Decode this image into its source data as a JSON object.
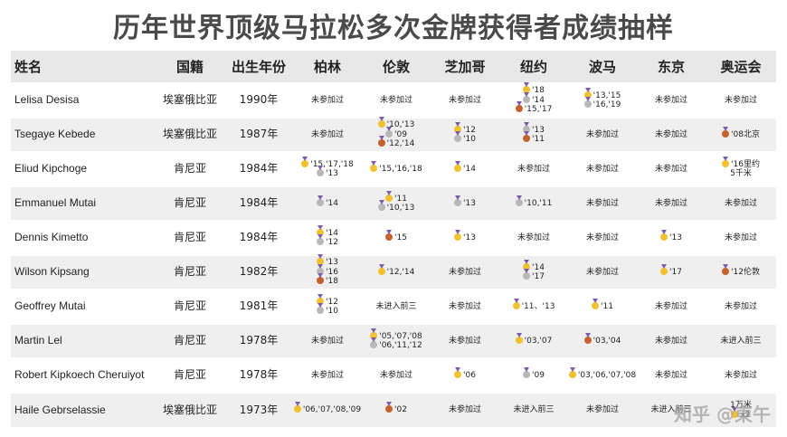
{
  "title": "历年世界顶级马拉松多次金牌获得者成绩抽样",
  "headers": [
    "姓名",
    "国籍",
    "出生年份",
    "柏林",
    "伦敦",
    "芝加哥",
    "纽约",
    "波马",
    "东京",
    "奥运会"
  ],
  "watermark": "知乎 @東午",
  "medal_colors": {
    "gold": "#f2c12e",
    "silver": "#b8b8b8",
    "bronze": "#c4622d"
  },
  "rows": [
    {
      "name": "Lelisa Desisa",
      "nationality": "埃塞俄比亚",
      "birth": "1990年",
      "races": [
        [
          {
            "t": "未参加过"
          }
        ],
        [
          {
            "t": "未参加过"
          }
        ],
        [
          {
            "t": "未参加过"
          }
        ],
        [
          {
            "m": "gold",
            "t": "'18"
          },
          {
            "m": "silver",
            "t": "'14"
          },
          {
            "m": "bronze",
            "t": "'15,'17"
          }
        ],
        [
          {
            "m": "gold",
            "t": "'13,'15"
          },
          {
            "m": "silver",
            "t": "'16,'19"
          }
        ],
        [
          {
            "t": "未参加过"
          }
        ],
        [
          {
            "t": "未参加过"
          }
        ]
      ]
    },
    {
      "name": "Tsegaye Kebede",
      "nationality": "埃塞俄比亚",
      "birth": "1987年",
      "races": [
        [
          {
            "t": "未参加过"
          }
        ],
        [
          {
            "m": "gold",
            "t": "'10,'13"
          },
          {
            "m": "silver",
            "t": "'09"
          },
          {
            "m": "bronze",
            "t": "'12,'14"
          }
        ],
        [
          {
            "m": "gold",
            "t": "'12"
          },
          {
            "m": "silver",
            "t": "'10"
          }
        ],
        [
          {
            "m": "silver",
            "t": "'13"
          },
          {
            "m": "bronze",
            "t": "'11"
          }
        ],
        [
          {
            "t": "未参加过"
          }
        ],
        [
          {
            "t": "未参加过"
          }
        ],
        [
          {
            "m": "bronze",
            "t": "'08北京"
          }
        ]
      ]
    },
    {
      "name": "Eliud Kipchoge",
      "nationality": "肯尼亚",
      "birth": "1984年",
      "races": [
        [
          {
            "m": "gold",
            "t": "'15,'17,'18"
          },
          {
            "m": "silver",
            "t": "'13"
          }
        ],
        [
          {
            "m": "gold",
            "t": "'15,'16,'18"
          }
        ],
        [
          {
            "m": "gold",
            "t": "'14"
          }
        ],
        [
          {
            "t": "未参加过"
          }
        ],
        [
          {
            "t": "未参加过"
          }
        ],
        [
          {
            "t": "未参加过"
          }
        ],
        [
          {
            "m": "gold",
            "t": "'16里约"
          },
          {
            "t": "5千米"
          }
        ]
      ]
    },
    {
      "name": "Emmanuel Mutai",
      "nationality": "肯尼亚",
      "birth": "1984年",
      "races": [
        [
          {
            "m": "silver",
            "t": "'14"
          }
        ],
        [
          {
            "m": "gold",
            "t": "'11"
          },
          {
            "m": "silver",
            "t": "'10,'13"
          }
        ],
        [
          {
            "m": "silver",
            "t": "'13"
          }
        ],
        [
          {
            "m": "silver",
            "t": "'10,'11"
          }
        ],
        [
          {
            "t": "未参加过"
          }
        ],
        [
          {
            "t": "未参加过"
          }
        ],
        [
          {
            "t": "未参加过"
          }
        ]
      ]
    },
    {
      "name": "Dennis Kimetto",
      "nationality": "肯尼亚",
      "birth": "1984年",
      "races": [
        [
          {
            "m": "gold",
            "t": "'14"
          },
          {
            "m": "silver",
            "t": "'12"
          }
        ],
        [
          {
            "m": "bronze",
            "t": "'15"
          }
        ],
        [
          {
            "m": "gold",
            "t": "'13"
          }
        ],
        [
          {
            "t": "未参加过"
          }
        ],
        [
          {
            "t": "未参加过"
          }
        ],
        [
          {
            "m": "gold",
            "t": "'13"
          }
        ],
        [
          {
            "t": "未参加过"
          }
        ]
      ]
    },
    {
      "name": "Wilson Kipsang",
      "nationality": "肯尼亚",
      "birth": "1982年",
      "races": [
        [
          {
            "m": "gold",
            "t": "'13"
          },
          {
            "m": "silver",
            "t": "'16"
          },
          {
            "m": "bronze",
            "t": "'18"
          }
        ],
        [
          {
            "m": "gold",
            "t": "'12,'14"
          }
        ],
        [
          {
            "t": "未参加过"
          }
        ],
        [
          {
            "m": "gold",
            "t": "'14"
          },
          {
            "m": "silver",
            "t": "'17"
          }
        ],
        [
          {
            "t": "未参加过"
          }
        ],
        [
          {
            "m": "gold",
            "t": "'17"
          }
        ],
        [
          {
            "m": "bronze",
            "t": "'12伦敦"
          }
        ]
      ]
    },
    {
      "name": "Geoffrey Mutai",
      "nationality": "肯尼亚",
      "birth": "1981年",
      "races": [
        [
          {
            "m": "gold",
            "t": "'12"
          },
          {
            "m": "silver",
            "t": "'10"
          }
        ],
        [
          {
            "t": "未进入前三"
          }
        ],
        [
          {
            "t": "未参加过"
          }
        ],
        [
          {
            "m": "gold",
            "t": "'11、'13"
          }
        ],
        [
          {
            "m": "gold",
            "t": "'11"
          }
        ],
        [
          {
            "t": "未参加过"
          }
        ],
        [
          {
            "t": "未参加过"
          }
        ]
      ]
    },
    {
      "name": "Martin Lel",
      "nationality": "肯尼亚",
      "birth": "1978年",
      "races": [
        [
          {
            "t": "未参加过"
          }
        ],
        [
          {
            "m": "gold",
            "t": "'05,'07,'08"
          },
          {
            "m": "silver",
            "t": "'06,'11,'12"
          }
        ],
        [
          {
            "t": "未参加过"
          }
        ],
        [
          {
            "m": "gold",
            "t": "'03,'07"
          }
        ],
        [
          {
            "m": "bronze",
            "t": "'03,'04"
          }
        ],
        [
          {
            "t": "未参加过"
          }
        ],
        [
          {
            "t": "未进入前三"
          }
        ]
      ]
    },
    {
      "name": "Robert Kipkoech Cheruiyot",
      "nationality": "肯尼亚",
      "birth": "1978年",
      "races": [
        [
          {
            "t": "未参加过"
          }
        ],
        [
          {
            "t": "未参加过"
          }
        ],
        [
          {
            "m": "gold",
            "t": "'06"
          }
        ],
        [
          {
            "m": "silver",
            "t": "'09"
          }
        ],
        [
          {
            "m": "gold",
            "t": "'03,'06,'07,'08"
          }
        ],
        [
          {
            "t": "未参加过"
          }
        ],
        [
          {
            "t": "未参加过"
          }
        ]
      ]
    },
    {
      "name": "Haile Gebrselassie",
      "nationality": "埃塞俄比亚",
      "birth": "1973年",
      "races": [
        [
          {
            "m": "gold",
            "t": "'06,'07,'08,'09"
          }
        ],
        [
          {
            "m": "bronze",
            "t": "'02"
          }
        ],
        [
          {
            "t": "未参加过"
          }
        ],
        [
          {
            "t": "未进入前三"
          }
        ],
        [
          {
            "t": "未参加过"
          }
        ],
        [
          {
            "t": "未进入前三"
          }
        ],
        [
          {
            "t": "1万米"
          },
          {
            "m": "gold",
            "t": "x2"
          }
        ]
      ]
    }
  ]
}
